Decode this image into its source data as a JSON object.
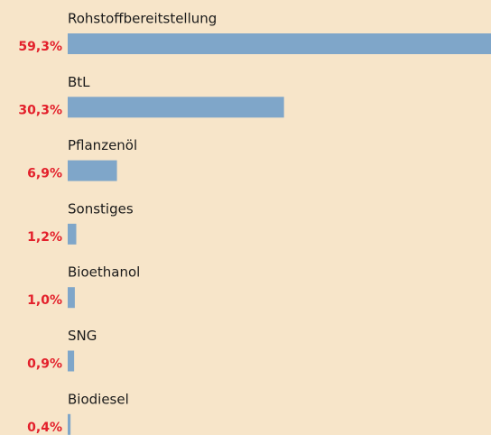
{
  "chart_data": {
    "type": "bar",
    "orientation": "horizontal",
    "categories": [
      "Rohstoffbereitstellung",
      "BtL",
      "Pflanzenöl",
      "Sonstiges",
      "Bioethanol",
      "SNG",
      "Biodiesel"
    ],
    "values": [
      59.3,
      30.3,
      6.9,
      1.2,
      1.0,
      0.9,
      0.4
    ],
    "value_labels": [
      "59,3%",
      "30,3%",
      "6,9%",
      "1,2%",
      "1,0%",
      "0,9%",
      "0,4%"
    ],
    "color": "#7fa6c9",
    "label_color": "#e3202b"
  }
}
